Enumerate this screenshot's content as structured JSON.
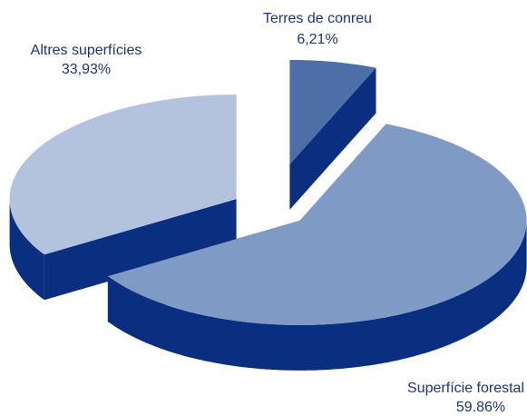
{
  "chart_data": {
    "type": "pie",
    "categories": [
      "Terres de conreu",
      "Superfície forestal",
      "Altres superfícies"
    ],
    "values": [
      6.21,
      59.86,
      33.93
    ],
    "value_labels": [
      "6,21%",
      "59.86%",
      "33,93%"
    ],
    "colors": [
      "#4e6ea8",
      "#7f9bc5",
      "#b3c2dd"
    ],
    "side_color": "#0b2f80"
  }
}
